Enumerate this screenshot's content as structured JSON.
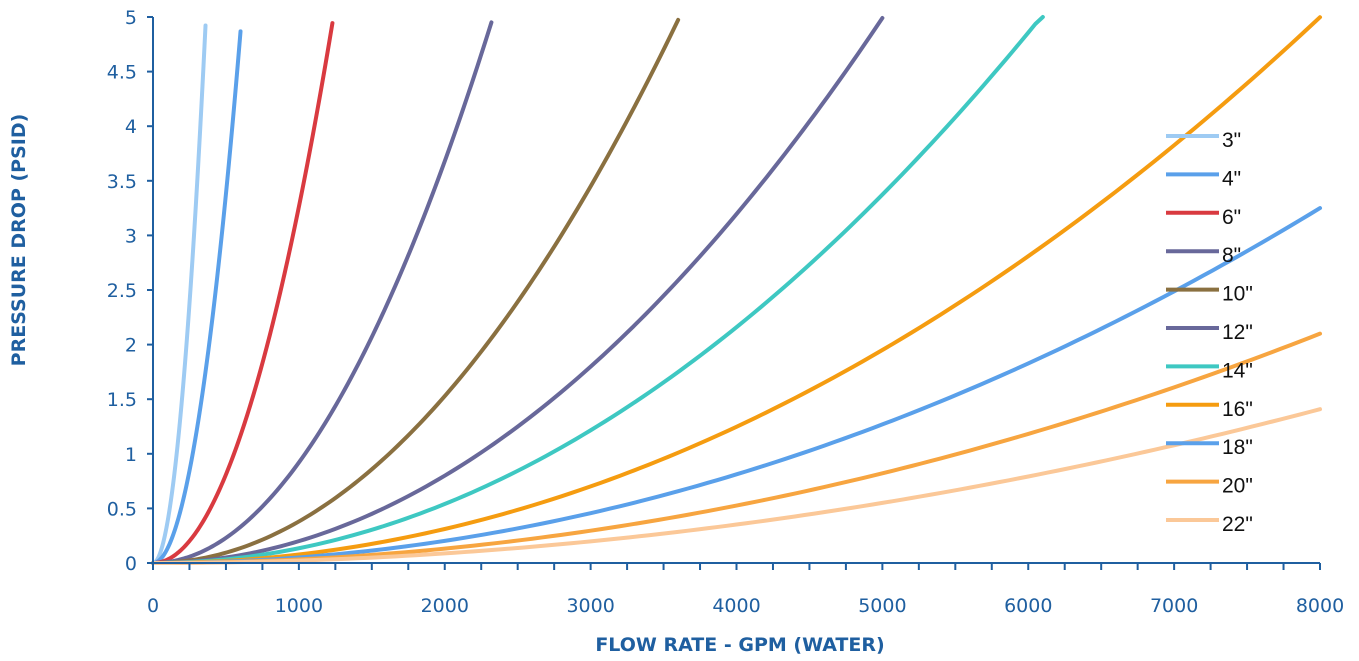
{
  "chart_data": {
    "type": "line",
    "title": "",
    "xlabel": "FLOW RATE - GPM (WATER)",
    "ylabel": "PRESSURE DROP (PSID)",
    "xlim": [
      0,
      8000
    ],
    "ylim": [
      0,
      5
    ],
    "x_ticks": [
      "0",
      "1000",
      "2000",
      "3000",
      "4000",
      "5000",
      "6000",
      "7000",
      "8000"
    ],
    "y_ticks": [
      "0",
      "0.5",
      "1",
      "1.5",
      "2",
      "2.5",
      "3",
      "3.5",
      "4",
      "4.5",
      "5"
    ],
    "grid": false,
    "legend_position": "right",
    "series": [
      {
        "name": "3\"",
        "color": "#9ecbf3",
        "points": [
          [
            0,
            0
          ],
          [
            100,
            0.38
          ],
          [
            200,
            1.52
          ],
          [
            300,
            3.42
          ],
          [
            360,
            4.92
          ]
        ]
      },
      {
        "name": "4\"",
        "color": "#5aa0ea",
        "points": [
          [
            0,
            0
          ],
          [
            200,
            0.54
          ],
          [
            400,
            2.16
          ],
          [
            500,
            3.38
          ],
          [
            600,
            4.87
          ]
        ]
      },
      {
        "name": "6\"",
        "color": "#d93a40",
        "points": [
          [
            0,
            0
          ],
          [
            300,
            0.29
          ],
          [
            600,
            1.17
          ],
          [
            900,
            2.64
          ],
          [
            1230,
            4.94
          ]
        ]
      },
      {
        "name": "8\"",
        "color": "#68689a",
        "points": [
          [
            0,
            0
          ],
          [
            500,
            0.23
          ],
          [
            1000,
            0.92
          ],
          [
            1500,
            2.07
          ],
          [
            2000,
            3.68
          ],
          [
            2320,
            4.95
          ]
        ]
      },
      {
        "name": "10\"",
        "color": "#8a7040",
        "points": [
          [
            0,
            0
          ],
          [
            1000,
            0.38
          ],
          [
            2000,
            1.53
          ],
          [
            3000,
            3.45
          ],
          [
            3600,
            4.97
          ]
        ]
      },
      {
        "name": "12\"",
        "color": "#68689a",
        "points": [
          [
            0,
            0
          ],
          [
            1000,
            0.2
          ],
          [
            2000,
            0.8
          ],
          [
            3000,
            1.8
          ],
          [
            4000,
            3.2
          ],
          [
            5000,
            4.98
          ]
        ]
      },
      {
        "name": "14\"",
        "color": "#3ec8c2",
        "points": [
          [
            0,
            0
          ],
          [
            1000,
            0.135
          ],
          [
            2000,
            0.54
          ],
          [
            3000,
            1.22
          ],
          [
            4000,
            2.16
          ],
          [
            5000,
            3.38
          ],
          [
            6100,
            5.0
          ]
        ]
      },
      {
        "name": "16\"",
        "color": "#f59c10",
        "points": [
          [
            0,
            0
          ],
          [
            1000,
            0.078
          ],
          [
            2000,
            0.31
          ],
          [
            3000,
            0.7
          ],
          [
            4000,
            1.25
          ],
          [
            5000,
            1.95
          ],
          [
            6000,
            2.81
          ],
          [
            7000,
            3.83
          ],
          [
            8000,
            5.0
          ]
        ]
      },
      {
        "name": "18\"",
        "color": "#5aa0ea",
        "points": [
          [
            0,
            0
          ],
          [
            1000,
            0.051
          ],
          [
            2000,
            0.2
          ],
          [
            3000,
            0.46
          ],
          [
            4000,
            0.81
          ],
          [
            5000,
            1.27
          ],
          [
            6000,
            1.83
          ],
          [
            7000,
            2.49
          ],
          [
            8000,
            3.25
          ]
        ]
      },
      {
        "name": "20\"",
        "color": "#f7a540",
        "points": [
          [
            0,
            0
          ],
          [
            1000,
            0.033
          ],
          [
            2000,
            0.13
          ],
          [
            3000,
            0.3
          ],
          [
            4000,
            0.53
          ],
          [
            5000,
            0.82
          ],
          [
            6000,
            1.18
          ],
          [
            7000,
            1.6
          ],
          [
            8000,
            2.1
          ]
        ]
      },
      {
        "name": "22\"",
        "color": "#fbc898",
        "points": [
          [
            0,
            0
          ],
          [
            1000,
            0.022
          ],
          [
            2000,
            0.088
          ],
          [
            3000,
            0.2
          ],
          [
            4000,
            0.35
          ],
          [
            5000,
            0.55
          ],
          [
            6000,
            0.79
          ],
          [
            7000,
            1.08
          ],
          [
            8000,
            1.41
          ]
        ]
      }
    ]
  }
}
